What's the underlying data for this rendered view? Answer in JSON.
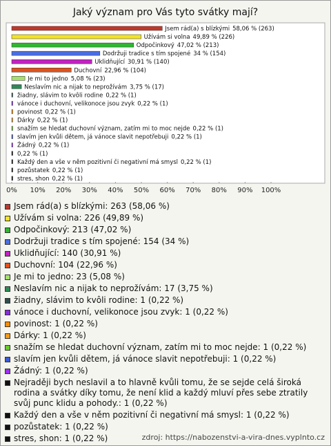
{
  "chart_data": {
    "type": "bar",
    "orientation": "horizontal",
    "title": "Jaký význam pro Vás tyto svátky mají?",
    "categories": [
      "Jsem rád(a) s blízkými",
      "Užívám si volna",
      "Odpočinkový",
      "Dodržuji tradice s tím spojené",
      "Uklidňující",
      "Duchovní",
      "Je mi to jedno",
      "Neslavím nic a nijak to neprožívám",
      "žiadny, slávim to kvôli rodine",
      "vánoce i duchovní, velikonoce jsou zvyk",
      "povinost",
      "Dárky",
      "snažím se hledat duchovní význam, zatím mi to moc nejde",
      "slavím jen kvůli dětem, já vánoce slavit nepotřebuji",
      "Žádný",
      null,
      "Každý den a vše v něm pozitivní či negativní má smysl",
      "pozůstatek",
      "stres, shon"
    ],
    "values": [
      58.06,
      49.89,
      47.02,
      34,
      30.91,
      22.96,
      5.08,
      3.75,
      0.22,
      0.22,
      0.22,
      0.22,
      0.22,
      0.22,
      0.22,
      0.22,
      0.22,
      0.22,
      0.22
    ],
    "value_labels": [
      "58,06 % (263)",
      "49,89 % (226)",
      "47,02 % (213)",
      "34 % (154)",
      "30,91 % (140)",
      "22,96 % (104)",
      "5,08 % (23)",
      "3,75 % (17)",
      "0,22 % (1)",
      "0,22 % (1)",
      "0,22 % (1)",
      "0,22 % (1)",
      "0,22 % (1)",
      "0,22 % (1)",
      "0,22 % (1)",
      "0,22 % (1)",
      "0,22 % (1)",
      "0,22 % (1)",
      "0,22 % (1)"
    ],
    "colors": [
      "#c0392b",
      "#f2e422",
      "#2eb82e",
      "#4a6fe3",
      "#c222c2",
      "#e0521e",
      "#a6df6e",
      "#2e8b57",
      "#2f4f4f",
      "#8a2be2",
      "#ff8c00",
      "#f59b1a",
      "#6acb2e",
      "#3b5bd6",
      "#9b30ff",
      "#111111",
      "#111111",
      "#111111",
      "#111111"
    ],
    "legend": [
      "Jsem rád(a) s blízkými: 263 (58,06 %)",
      "Užívám si volna: 226 (49,89 %)",
      "Odpočinkový: 213 (47,02 %)",
      "Dodržuji tradice s tím spojené: 154 (34 %)",
      "Uklidňující: 140 (30,91 %)",
      "Duchovní: 104 (22,96 %)",
      "Je mi to jedno: 23 (5,08 %)",
      "Neslavím nic a nijak to neprožívám: 17 (3,75 %)",
      "žiadny, slávim to kvôli rodine: 1 (0,22 %)",
      "vánoce i duchovní, velikonoce jsou zvyk: 1 (0,22 %)",
      "povinost: 1 (0,22 %)",
      "Dárky: 1 (0,22 %)",
      "snažím se hledat duchovní význam, zatím mi to moc nejde: 1 (0,22 %)",
      "slavím jen kvůli dětem, já vánoce slavit nepotřebuji: 1 (0,22 %)",
      "Žádný: 1 (0,22 %)",
      "Nejraději bych neslavil a to hlavně kvůli tomu, že se sejde celá široká rodina a svátky díky tomu, že není klid a každý mluví přes sebe ztratily svůj punc klidu a pohody.: 1 (0,22 %)",
      "Každý den a vše v něm pozitivní či negativní má smysl: 1 (0,22 %)",
      "pozůstatek: 1 (0,22 %)",
      "stres, shon: 1 (0,22 %)"
    ],
    "xlim": [
      0,
      120
    ],
    "xticks": [
      {
        "value": 0,
        "label": "0%"
      },
      {
        "value": 10,
        "label": "10%"
      },
      {
        "value": 20,
        "label": "20%"
      },
      {
        "value": 30,
        "label": "30%"
      },
      {
        "value": 40,
        "label": "40%"
      },
      {
        "value": 50,
        "label": "50%"
      },
      {
        "value": 60,
        "label": "60%"
      },
      {
        "value": 70,
        "label": "70%"
      },
      {
        "value": 80,
        "label": "80%"
      },
      {
        "value": 90,
        "label": "90%"
      },
      {
        "value": 100,
        "label": "100%"
      }
    ],
    "source": "zdroj: https://nabozenstvi-a-vira-dnes.vyplnto.cz"
  }
}
